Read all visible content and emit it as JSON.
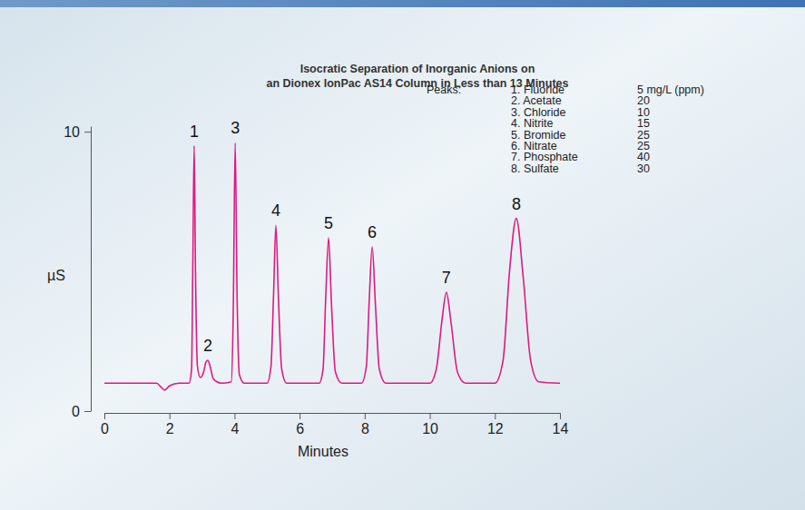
{
  "chart_data": {
    "type": "line",
    "title": [
      "Isocratic Separation of Inorganic Anions on",
      "an Dionex IonPac AS14 Column in Less than 13 Minutes"
    ],
    "x_label": "Minutes",
    "y_label": "µS",
    "xlim": [
      0,
      14
    ],
    "xticks": [
      0,
      2,
      4,
      6,
      8,
      10,
      12,
      14
    ],
    "ylim": [
      0,
      10.2
    ],
    "yticks": [
      0,
      10
    ],
    "color": "#e3187f",
    "x": [
      0,
      1.6,
      1.75,
      1.85,
      2.0,
      2.3,
      2.6,
      2.68,
      2.72,
      2.76,
      2.8,
      2.86,
      2.95,
      3.05,
      3.12,
      3.18,
      3.25,
      3.35,
      3.6,
      3.9,
      3.96,
      4.02,
      4.08,
      4.15,
      4.3,
      5.0,
      5.12,
      5.2,
      5.27,
      5.35,
      5.45,
      5.6,
      6.6,
      6.72,
      6.8,
      6.89,
      6.98,
      7.1,
      7.3,
      7.9,
      8.05,
      8.14,
      8.23,
      8.33,
      8.45,
      8.65,
      10.0,
      10.2,
      10.38,
      10.51,
      10.65,
      10.85,
      11.1,
      12.0,
      12.25,
      12.45,
      12.66,
      12.87,
      13.1,
      13.35,
      14.0
    ],
    "values": [
      1.0,
      1.0,
      0.85,
      0.75,
      0.9,
      1.0,
      1.0,
      1.5,
      5.5,
      9.5,
      5.0,
      1.6,
      1.2,
      1.4,
      1.75,
      1.82,
      1.6,
      1.15,
      1.0,
      1.05,
      3.5,
      9.6,
      4.0,
      1.3,
      1.0,
      1.0,
      1.6,
      4.2,
      6.65,
      4.0,
      1.5,
      1.0,
      1.0,
      1.5,
      4.0,
      6.2,
      3.8,
      1.4,
      1.0,
      1.0,
      1.6,
      4.0,
      5.88,
      3.8,
      1.5,
      1.0,
      1.0,
      1.5,
      3.3,
      4.25,
      3.2,
      1.4,
      1.0,
      1.0,
      1.8,
      5.0,
      6.9,
      4.8,
      1.8,
      1.05,
      1.0
    ],
    "annotations": [
      {
        "text": "1",
        "x": 2.76,
        "y": 9.5
      },
      {
        "text": "2",
        "x": 3.18,
        "y": 1.82
      },
      {
        "text": "3",
        "x": 4.02,
        "y": 9.6
      },
      {
        "text": "4",
        "x": 5.27,
        "y": 6.65
      },
      {
        "text": "5",
        "x": 6.89,
        "y": 6.2
      },
      {
        "text": "6",
        "x": 8.23,
        "y": 5.88
      },
      {
        "text": "7",
        "x": 10.51,
        "y": 4.25
      },
      {
        "text": "8",
        "x": 12.66,
        "y": 6.9
      }
    ],
    "peaks_table": {
      "title": "Peaks:",
      "rows": [
        {
          "label": "1. Fluoride",
          "amount": "5 mg/L (ppm)"
        },
        {
          "label": "2. Acetate",
          "amount": "20"
        },
        {
          "label": "3. Chloride",
          "amount": "10"
        },
        {
          "label": "4. Nitrite",
          "amount": "15"
        },
        {
          "label": "5. Bromide",
          "amount": "25"
        },
        {
          "label": "6. Nitrate",
          "amount": "25"
        },
        {
          "label": "7. Phosphate",
          "amount": "40"
        },
        {
          "label": "8. Sulfate",
          "amount": "30"
        }
      ]
    }
  }
}
